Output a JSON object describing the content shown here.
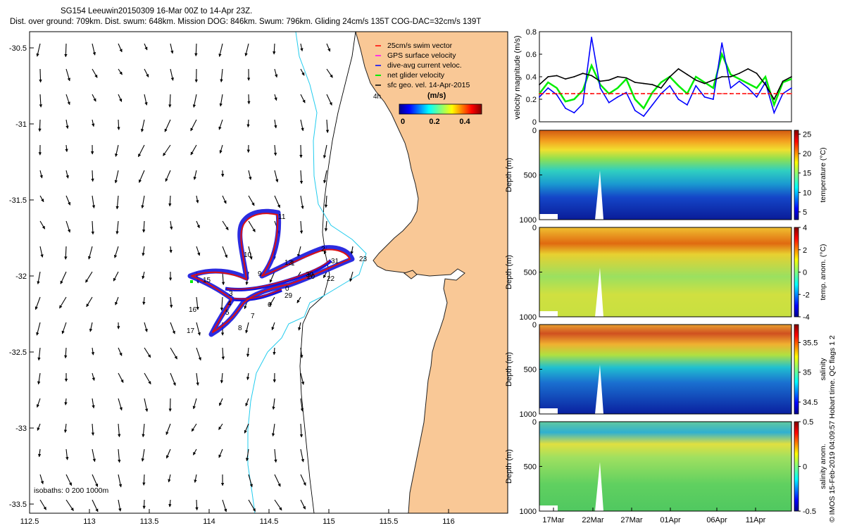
{
  "header": {
    "title_line1": "SG154 Leeuwin20150309 16-Mar 00Z to 14-Apr 23Z.",
    "title_line2": "Dist. over ground: 709km. Dist. swum: 648km. Mission DOG: 846km. Swum: 796km. Gliding 24cm/s 135T COG-DAC=32cm/s 139T"
  },
  "copyright": "© IMOS 15-Feb-2019 04:09:57 Hobart time. QC flags 1  2",
  "colors": {
    "land": "#f9c896",
    "track_blue": "#1515dd",
    "track_red": "#dd1111",
    "isobath_cyan": "#22ccee",
    "swim_red": "#ff0000",
    "gps_magenta": "#ff00ff",
    "dac_blue": "#0000ff",
    "net_green": "#00ee00",
    "geo_black": "#000000"
  },
  "legend": {
    "items": [
      {
        "label": "25cm/s swim vector",
        "color": "#ff0000"
      },
      {
        "label": "GPS surface velocity",
        "color": "#ff00ff"
      },
      {
        "label": "dive-avg current veloc.",
        "color": "#0000ff"
      },
      {
        "label": "net glider velocity",
        "color": "#00ee00"
      },
      {
        "label": "sfc geo. vel. 14-Apr-2015",
        "color": "#000000"
      }
    ],
    "colorbar_title": "(m/s)",
    "colorbar_ticks": [
      "0",
      "0.2",
      "0.4"
    ],
    "hour_marker": "4h"
  },
  "map": {
    "x_ticks": [
      "112.5",
      "113",
      "113.5",
      "114",
      "114.5",
      "115",
      "115.5",
      "116"
    ],
    "y_ticks": [
      "-30.5",
      "-31",
      "-31.5",
      "-32",
      "-32.5",
      "-33",
      "-33.5"
    ],
    "isobath_note": "isobaths: 0   200  1000m",
    "labels": [
      "2",
      "3",
      "4",
      "5",
      "6",
      "7",
      "8",
      "9",
      "10",
      "11",
      "13",
      "15",
      "16",
      "17",
      "20",
      "22",
      "23",
      "29",
      "30",
      "31",
      "0",
      "1"
    ]
  },
  "chart_data": [
    {
      "type": "line",
      "title": "velocity magnitude",
      "ylabel": "velocity magnitude (m/s)",
      "ylim": [
        0,
        0.8
      ],
      "yticks": [
        "0",
        "0.2",
        "0.4",
        "0.6",
        "0.8"
      ],
      "x_days": [
        0,
        1,
        2,
        3,
        4,
        5,
        6,
        7,
        8,
        9,
        10,
        11,
        12,
        13,
        14,
        15,
        16,
        17,
        18,
        19,
        20,
        21,
        22,
        23,
        24,
        25,
        26,
        27,
        28,
        29
      ],
      "series": [
        {
          "name": "sfc geo. vel.",
          "color": "#000000",
          "values": [
            0.33,
            0.4,
            0.41,
            0.38,
            0.4,
            0.43,
            0.41,
            0.36,
            0.37,
            0.4,
            0.39,
            0.35,
            0.34,
            0.33,
            0.3,
            0.4,
            0.47,
            0.42,
            0.37,
            0.34,
            0.37,
            0.4,
            0.4,
            0.43,
            0.47,
            0.43,
            0.33,
            0.2,
            0.36,
            0.4
          ]
        },
        {
          "name": "dive-avg current veloc.",
          "color": "#0000ff",
          "values": [
            0.22,
            0.3,
            0.24,
            0.12,
            0.08,
            0.16,
            0.75,
            0.3,
            0.17,
            0.22,
            0.26,
            0.1,
            0.05,
            0.15,
            0.25,
            0.32,
            0.2,
            0.15,
            0.32,
            0.22,
            0.2,
            0.7,
            0.3,
            0.36,
            0.3,
            0.22,
            0.35,
            0.08,
            0.25,
            0.3
          ]
        },
        {
          "name": "net glider velocity",
          "color": "#00ee00",
          "values": [
            0.25,
            0.35,
            0.3,
            0.18,
            0.2,
            0.28,
            0.5,
            0.33,
            0.25,
            0.3,
            0.38,
            0.2,
            0.12,
            0.26,
            0.35,
            0.4,
            0.32,
            0.25,
            0.4,
            0.35,
            0.3,
            0.6,
            0.42,
            0.38,
            0.34,
            0.3,
            0.4,
            0.15,
            0.35,
            0.38
          ]
        },
        {
          "name": "25cm/s swim vector",
          "color": "#ff0000",
          "values": [
            0.25,
            0.25,
            0.25,
            0.25,
            0.25,
            0.25,
            0.25,
            0.25,
            0.25,
            0.25,
            0.25,
            0.25,
            0.25,
            0.25,
            0.25,
            0.25,
            0.25,
            0.25,
            0.25,
            0.25,
            0.25,
            0.25,
            0.25,
            0.25,
            0.25,
            0.25,
            0.25,
            0.25,
            0.25,
            0.25
          ]
        }
      ]
    },
    {
      "type": "heatmap",
      "title": "temperature",
      "ylabel": "Depth (m)",
      "yticks": [
        "0",
        "500",
        "1000"
      ],
      "ylim": [
        1000,
        0
      ],
      "colorbar_label": "temperature (°C)",
      "colorbar_ticks": [
        "5",
        "10",
        "15",
        "20",
        "25"
      ],
      "range": [
        3,
        26
      ]
    },
    {
      "type": "heatmap",
      "title": "temperature anomaly",
      "ylabel": "Depth (m)",
      "yticks": [
        "0",
        "500",
        "1000"
      ],
      "ylim": [
        1000,
        0
      ],
      "colorbar_label": "temp. anom. (°C)",
      "colorbar_ticks": [
        "-4",
        "-2",
        "0",
        "2",
        "4"
      ],
      "range": [
        -4,
        4
      ]
    },
    {
      "type": "heatmap",
      "title": "salinity",
      "ylabel": "Depth (m)",
      "yticks": [
        "0",
        "500",
        "1000"
      ],
      "ylim": [
        1000,
        0
      ],
      "colorbar_label": "salinity",
      "colorbar_ticks": [
        "34.5",
        "35",
        "35.5"
      ],
      "range": [
        34.3,
        35.8
      ]
    },
    {
      "type": "heatmap",
      "title": "salinity anomaly",
      "ylabel": "Depth (m)",
      "yticks": [
        "0",
        "500",
        "1000"
      ],
      "ylim": [
        1000,
        0
      ],
      "colorbar_label": "salinity anom.",
      "colorbar_ticks": [
        "-0.5",
        "0",
        "0.5"
      ],
      "range": [
        -0.5,
        0.5
      ],
      "xticks": [
        "17Mar",
        "22Mar",
        "27Mar",
        "01Apr",
        "06Apr",
        "11Apr"
      ]
    }
  ]
}
